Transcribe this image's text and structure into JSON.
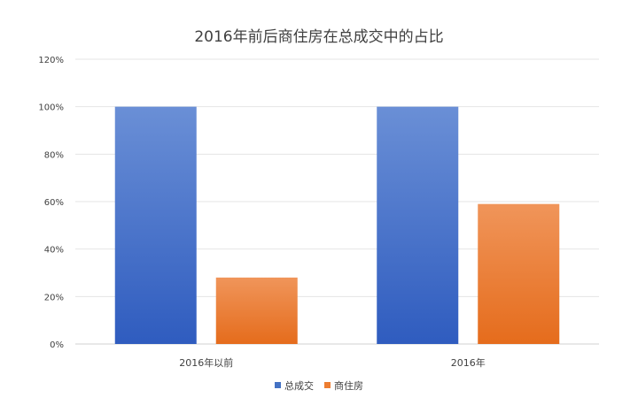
{
  "chart_data": {
    "type": "bar",
    "title": "2016年前后商住房在总成交中的占比",
    "categories": [
      "2016年以前",
      "2016年"
    ],
    "series": [
      {
        "name": "总成交",
        "values": [
          100,
          100
        ],
        "color": "#4472c4"
      },
      {
        "name": "商住房",
        "values": [
          28,
          59
        ],
        "color": "#ed7d31"
      }
    ],
    "ylim": [
      0,
      120
    ],
    "yticks": [
      0,
      20,
      40,
      60,
      80,
      100,
      120
    ],
    "ytick_suffix": "%",
    "grid": true,
    "legend_position": "bottom"
  }
}
